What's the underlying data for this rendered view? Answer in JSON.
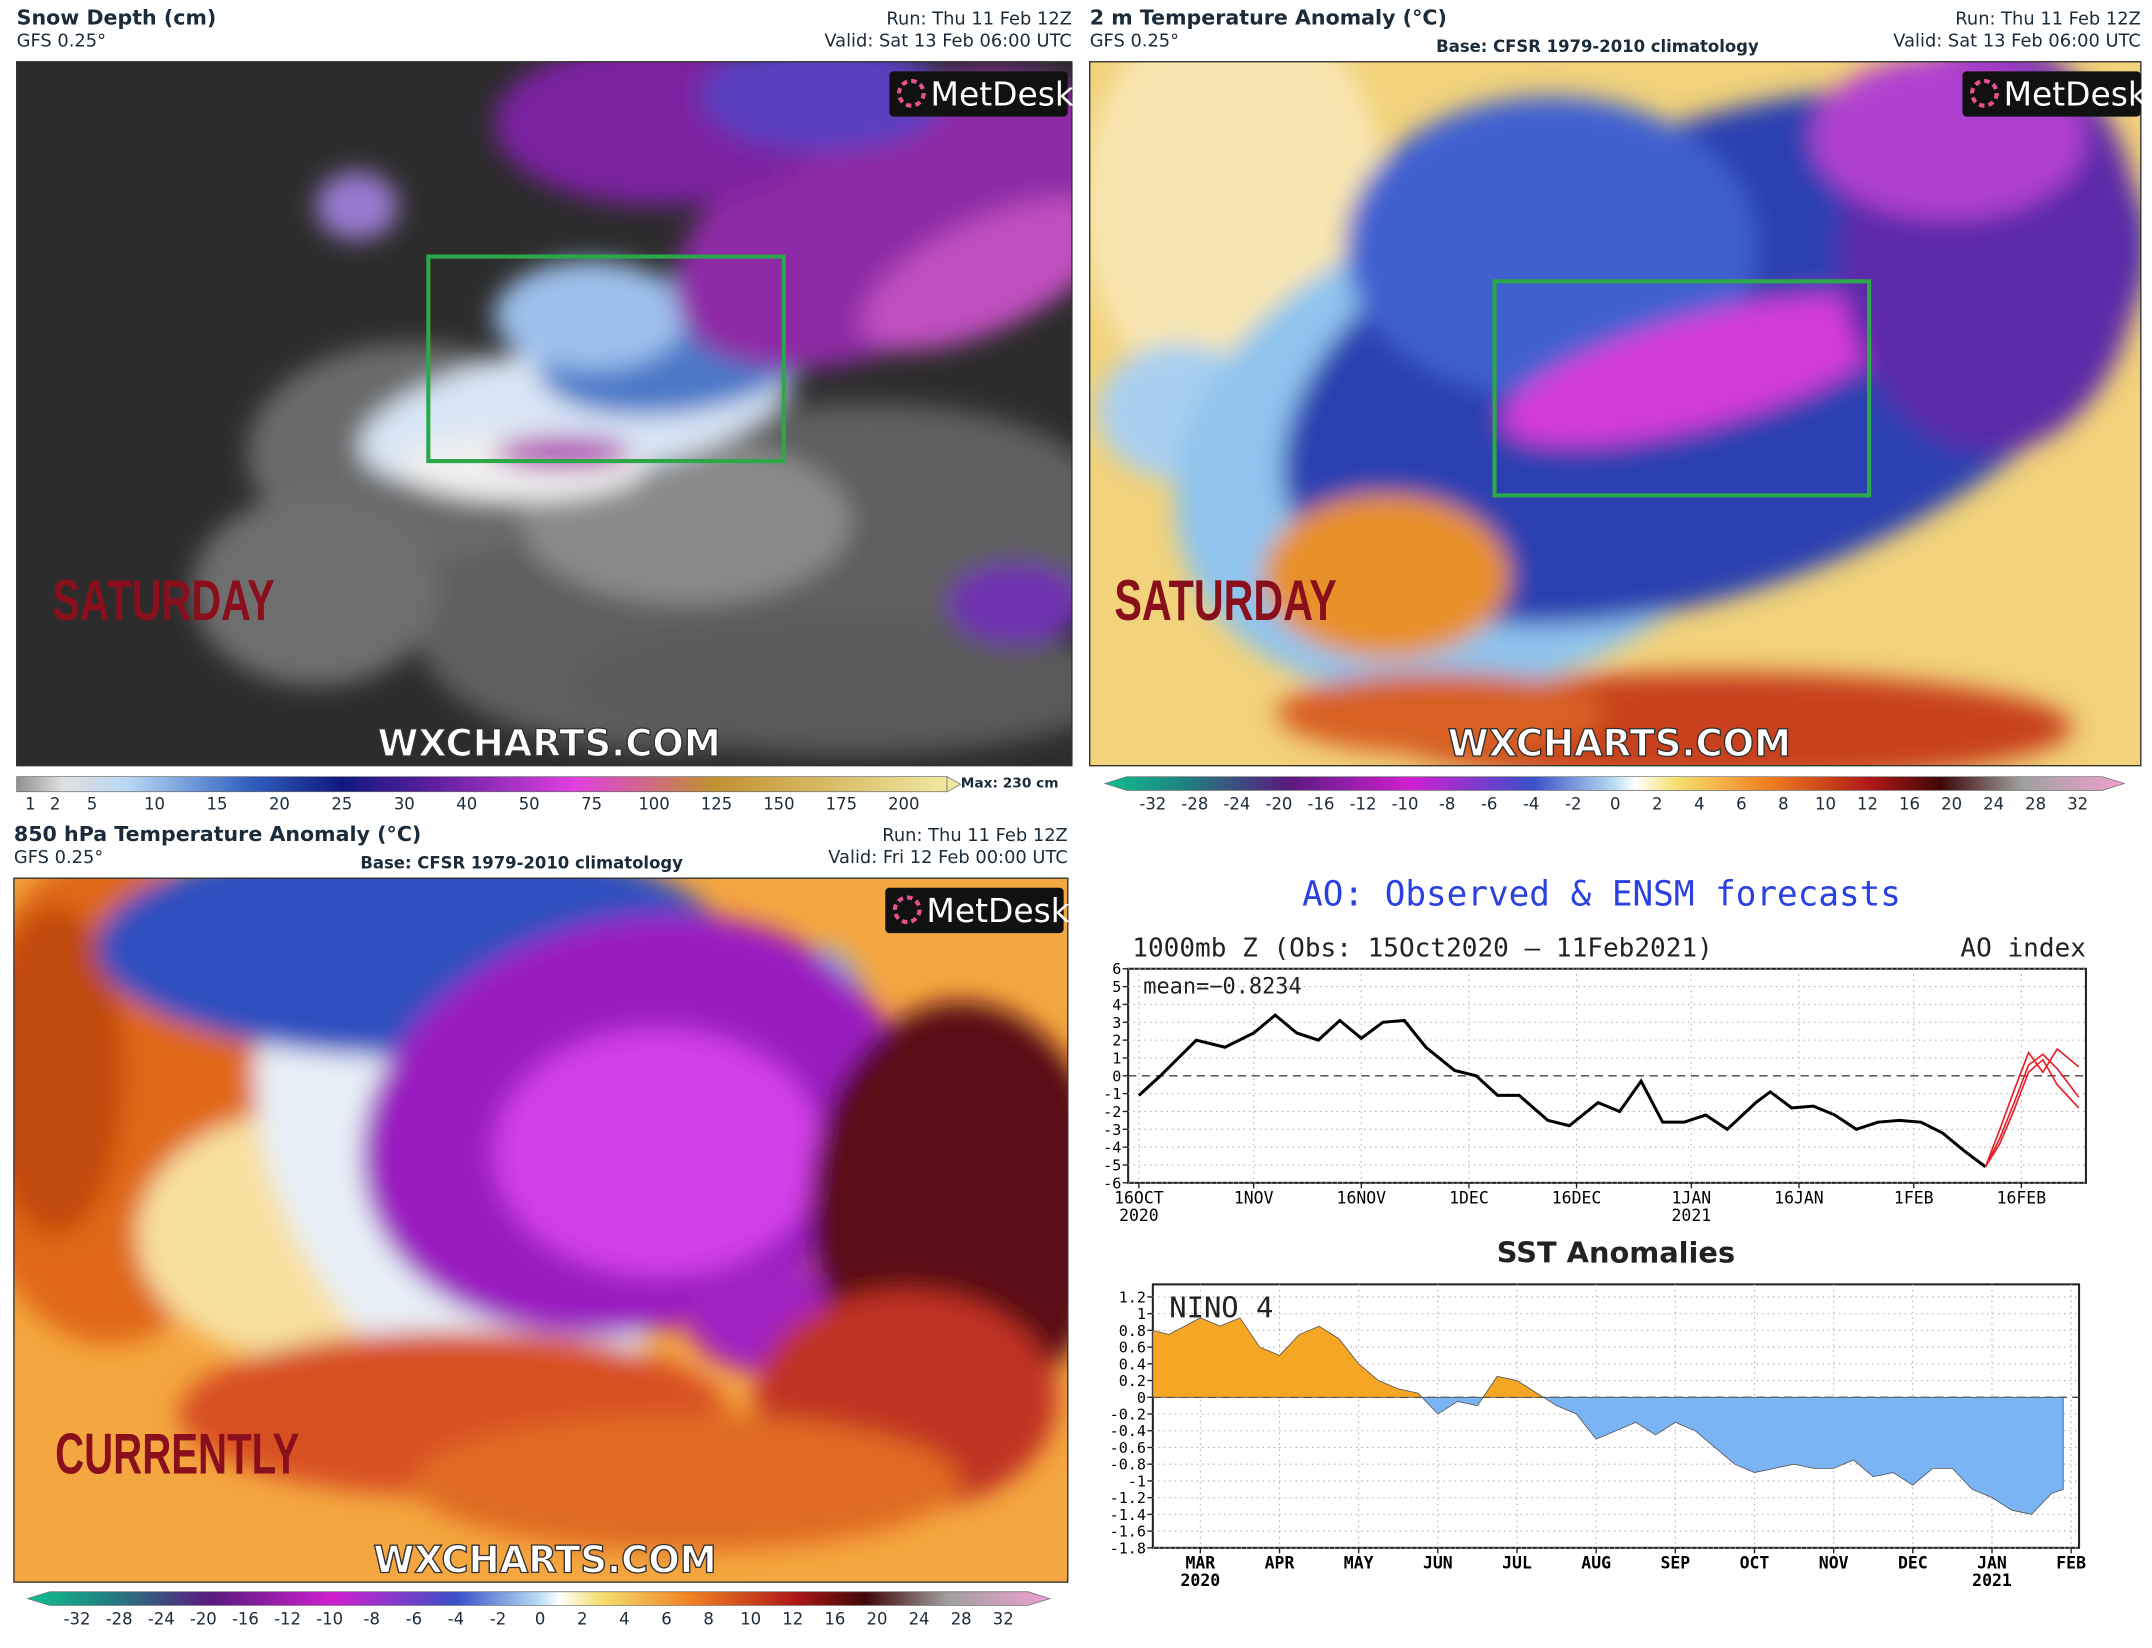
{
  "panels": [
    {
      "title": "Snow Depth (cm)",
      "model": "GFS 0.25°",
      "run": "Run: Thu 11 Feb 12Z",
      "valid": "Valid: Sat 13 Feb 06:00 UTC",
      "logo": "MetDesk",
      "day_label": "SATURDAY",
      "watermark": "WXCHARTS.COM",
      "colorbar_labels": [
        1,
        2,
        5,
        10,
        15,
        20,
        25,
        30,
        40,
        50,
        75,
        100,
        125,
        150,
        175,
        200
      ],
      "colorbar_note": "Max: 230 cm"
    },
    {
      "title": "2 m Temperature Anomaly (°C)",
      "model": "GFS 0.25°",
      "base": "Base: CFSR 1979-2010 climatology",
      "run": "Run: Thu 11 Feb 12Z",
      "valid": "Valid: Sat 13 Feb 06:00 UTC",
      "logo": "MetDesk",
      "day_label": "SATURDAY",
      "watermark": "WXCHARTS.COM",
      "colorbar_labels": [
        -32,
        -28,
        -24,
        -20,
        -16,
        -12,
        -10,
        -8,
        -6,
        -4,
        -2,
        0,
        2,
        4,
        6,
        8,
        10,
        12,
        16,
        20,
        24,
        28,
        32
      ]
    },
    {
      "title": "850 hPa Temperature Anomaly (°C)",
      "model": "GFS 0.25°",
      "base": "Base: CFSR 1979-2010 climatology",
      "run": "Run: Thu 11 Feb 12Z",
      "valid": "Valid: Fri 12 Feb 00:00 UTC",
      "logo": "MetDesk",
      "day_label": "CURRENTLY",
      "watermark": "WXCHARTS.COM",
      "colorbar_labels": [
        -32,
        -28,
        -24,
        -20,
        -16,
        -12,
        -10,
        -8,
        -6,
        -4,
        -2,
        0,
        2,
        4,
        6,
        8,
        10,
        12,
        16,
        20,
        24,
        28,
        32
      ]
    }
  ],
  "chart_data": [
    {
      "type": "line",
      "title": "AO: Observed & ENSM forecasts",
      "title_color": "#2a40e0",
      "subtitle": "1000mb Z (Obs: 15Oct2020 – 11Feb2021)",
      "index_label": "AO index",
      "annotation": "mean=−0.8234",
      "x": [
        0,
        3,
        8,
        12,
        16,
        19,
        22,
        25,
        28,
        31,
        34,
        37,
        40,
        44,
        47,
        50,
        53,
        57,
        60,
        64,
        67,
        70,
        73,
        76,
        79,
        82,
        86,
        88,
        91,
        94,
        97,
        100,
        103,
        106,
        109,
        112,
        115,
        118,
        120,
        122,
        124,
        126,
        128,
        131
      ],
      "series": [
        {
          "color": "#000000",
          "values": [
            -1.1,
            0,
            2,
            1.6,
            2.4,
            3.4,
            2.4,
            2,
            3.1,
            2.1,
            3,
            3.1,
            1.6,
            0.3,
            0,
            -1.1,
            -1.1,
            -2.5,
            -2.8,
            -1.5,
            -2,
            -0.3,
            -2.6,
            -2.6,
            -2.2,
            -3,
            -1.5,
            -0.9,
            -1.8,
            -1.7,
            -2.2,
            -3,
            -2.6,
            -2.5,
            -2.6,
            -3.2,
            -4.2,
            -5.1,
            null,
            null,
            null,
            null,
            null,
            null
          ]
        },
        {
          "color": "#e8202a",
          "values": [
            null,
            null,
            null,
            null,
            null,
            null,
            null,
            null,
            null,
            null,
            null,
            null,
            null,
            null,
            null,
            null,
            null,
            null,
            null,
            null,
            null,
            null,
            null,
            null,
            null,
            null,
            null,
            null,
            null,
            null,
            null,
            null,
            null,
            null,
            null,
            null,
            null,
            -5.1,
            -3.5,
            -1.5,
            0.6,
            1.2,
            0.4,
            -1.2
          ]
        },
        {
          "color": "#e8202a",
          "values": [
            null,
            null,
            null,
            null,
            null,
            null,
            null,
            null,
            null,
            null,
            null,
            null,
            null,
            null,
            null,
            null,
            null,
            null,
            null,
            null,
            null,
            null,
            null,
            null,
            null,
            null,
            null,
            null,
            null,
            null,
            null,
            null,
            null,
            null,
            null,
            null,
            null,
            -5.1,
            -3,
            -0.8,
            1.3,
            0.2,
            1.5,
            0.5
          ]
        },
        {
          "color": "#e8202a",
          "values": [
            null,
            null,
            null,
            null,
            null,
            null,
            null,
            null,
            null,
            null,
            null,
            null,
            null,
            null,
            null,
            null,
            null,
            null,
            null,
            null,
            null,
            null,
            null,
            null,
            null,
            null,
            null,
            null,
            null,
            null,
            null,
            null,
            null,
            null,
            null,
            null,
            null,
            -5.1,
            -3.8,
            -1.9,
            0.2,
            0.9,
            -0.5,
            -1.8
          ]
        }
      ],
      "xlim": [
        -1.5,
        132
      ],
      "ylim": [
        -6,
        6
      ],
      "yticks": [
        -6,
        -5,
        -4,
        -3,
        -2,
        -1,
        0,
        1,
        2,
        3,
        4,
        5,
        6
      ],
      "xticks": [
        {
          "value": 0,
          "label": "16OCT",
          "year": "2020"
        },
        {
          "value": 16,
          "label": "1NOV"
        },
        {
          "value": 31,
          "label": "16NOV"
        },
        {
          "value": 46,
          "label": "1DEC"
        },
        {
          "value": 61,
          "label": "16DEC"
        },
        {
          "value": 77,
          "label": "1JAN",
          "year": "2021"
        },
        {
          "value": 92,
          "label": "16JAN"
        },
        {
          "value": 108,
          "label": "1FEB"
        },
        {
          "value": 123,
          "label": "16FEB"
        }
      ],
      "grid": true
    },
    {
      "type": "area",
      "title": "SST Anomalies",
      "annotation": "NINO 4",
      "positive_color": "#f5a623",
      "negative_color": "#7ab4f5",
      "x": [
        -0.6,
        -0.4,
        0,
        0.25,
        0.5,
        0.75,
        1,
        1.25,
        1.5,
        1.75,
        2,
        2.25,
        2.5,
        2.75,
        3,
        3.25,
        3.5,
        3.75,
        4,
        4.25,
        4.5,
        4.75,
        5,
        5.25,
        5.5,
        5.75,
        6,
        6.25,
        6.5,
        6.75,
        7,
        7.25,
        7.5,
        7.75,
        8,
        8.25,
        8.5,
        8.75,
        9,
        9.25,
        9.5,
        9.75,
        10,
        10.25,
        10.5,
        10.75,
        10.9
      ],
      "values": [
        0.8,
        0.75,
        0.95,
        0.85,
        0.95,
        0.6,
        0.5,
        0.75,
        0.85,
        0.7,
        0.4,
        0.2,
        0.1,
        0.05,
        -0.2,
        -0.05,
        -0.1,
        0.25,
        0.2,
        0.05,
        -0.1,
        -0.2,
        -0.5,
        -0.4,
        -0.3,
        -0.45,
        -0.3,
        -0.4,
        -0.6,
        -0.8,
        -0.9,
        -0.85,
        -0.8,
        -0.85,
        -0.85,
        -0.75,
        -0.95,
        -0.9,
        -1.05,
        -0.85,
        -0.85,
        -1.1,
        -1.2,
        -1.35,
        -1.4,
        -1.15,
        -1.1
      ],
      "xlim": [
        -0.6,
        11.1
      ],
      "ylim": [
        -1.8,
        1.35
      ],
      "yticks": [
        -1.8,
        -1.6,
        -1.4,
        -1.2,
        -1,
        -0.8,
        -0.6,
        -0.4,
        -0.2,
        0,
        0.2,
        0.4,
        0.6,
        0.8,
        1,
        1.2
      ],
      "xticks": [
        {
          "value": 0,
          "label": "MAR",
          "year": "2020"
        },
        {
          "value": 1,
          "label": "APR"
        },
        {
          "value": 2,
          "label": "MAY"
        },
        {
          "value": 3,
          "label": "JUN"
        },
        {
          "value": 4,
          "label": "JUL"
        },
        {
          "value": 5,
          "label": "AUG"
        },
        {
          "value": 6,
          "label": "SEP"
        },
        {
          "value": 7,
          "label": "OCT"
        },
        {
          "value": 8,
          "label": "NOV"
        },
        {
          "value": 9,
          "label": "DEC"
        },
        {
          "value": 10,
          "label": "JAN",
          "year": "2021"
        },
        {
          "value": 11,
          "label": "FEB"
        }
      ],
      "grid": true
    }
  ]
}
